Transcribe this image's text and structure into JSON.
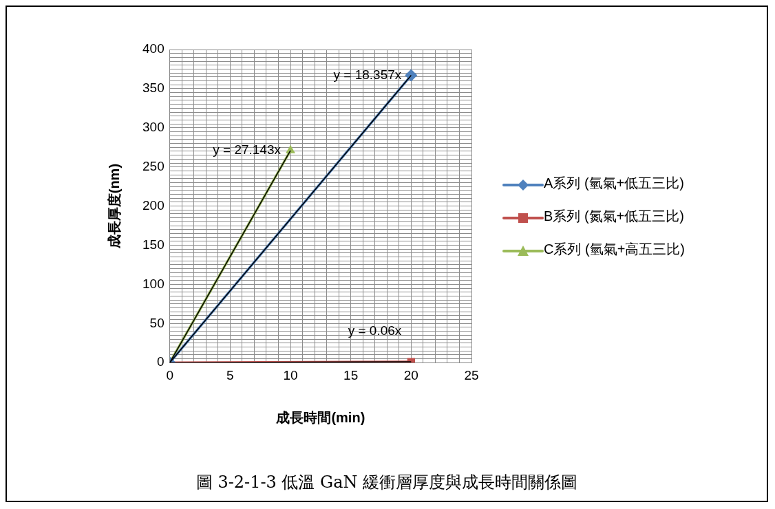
{
  "chart_data": {
    "type": "line",
    "xlabel": "成長時間(min)",
    "ylabel": "成長厚度(nm)",
    "xlim": [
      0,
      25
    ],
    "xticks": [
      0,
      {
        "value": 1,
        "label": null
      },
      {
        "value": 2,
        "label": null
      },
      {
        "value": 3,
        "label": null
      },
      {
        "value": 4,
        "label": null
      },
      5,
      {
        "value": 6,
        "label": null
      },
      {
        "value": 7,
        "label": null
      },
      {
        "value": 8,
        "label": null
      },
      {
        "value": 9,
        "label": null
      },
      10,
      {
        "value": 11,
        "label": null
      },
      {
        "value": 12,
        "label": null
      },
      {
        "value": 13,
        "label": null
      },
      {
        "value": 14,
        "label": null
      },
      15,
      {
        "value": 16,
        "label": null
      },
      {
        "value": 17,
        "label": null
      },
      {
        "value": 18,
        "label": null
      },
      {
        "value": 19,
        "label": null
      },
      20,
      {
        "value": 21,
        "label": null
      },
      {
        "value": 22,
        "label": null
      },
      {
        "value": 23,
        "label": null
      },
      {
        "value": 24,
        "label": null
      },
      25
    ],
    "ylim": [
      0,
      400
    ],
    "yticks": [
      0,
      {
        "value": 5,
        "label": null
      },
      {
        "value": 10,
        "label": null
      },
      {
        "value": 15,
        "label": null
      },
      {
        "value": 20,
        "label": null
      },
      {
        "value": 25,
        "label": null
      },
      {
        "value": 30,
        "label": null
      },
      {
        "value": 35,
        "label": null
      },
      {
        "value": 40,
        "label": null
      },
      {
        "value": 45,
        "label": null
      },
      50,
      {
        "value": 55,
        "label": null
      },
      {
        "value": 60,
        "label": null
      },
      {
        "value": 65,
        "label": null
      },
      {
        "value": 70,
        "label": null
      },
      {
        "value": 75,
        "label": null
      },
      {
        "value": 80,
        "label": null
      },
      {
        "value": 85,
        "label": null
      },
      {
        "value": 90,
        "label": null
      },
      {
        "value": 95,
        "label": null
      },
      100,
      {
        "value": 105,
        "label": null
      },
      {
        "value": 110,
        "label": null
      },
      {
        "value": 115,
        "label": null
      },
      {
        "value": 120,
        "label": null
      },
      {
        "value": 125,
        "label": null
      },
      {
        "value": 130,
        "label": null
      },
      {
        "value": 135,
        "label": null
      },
      {
        "value": 140,
        "label": null
      },
      {
        "value": 145,
        "label": null
      },
      150,
      {
        "value": 155,
        "label": null
      },
      {
        "value": 160,
        "label": null
      },
      {
        "value": 165,
        "label": null
      },
      {
        "value": 170,
        "label": null
      },
      {
        "value": 175,
        "label": null
      },
      {
        "value": 180,
        "label": null
      },
      {
        "value": 185,
        "label": null
      },
      {
        "value": 190,
        "label": null
      },
      {
        "value": 195,
        "label": null
      },
      200,
      {
        "value": 205,
        "label": null
      },
      {
        "value": 210,
        "label": null
      },
      {
        "value": 215,
        "label": null
      },
      {
        "value": 220,
        "label": null
      },
      {
        "value": 225,
        "label": null
      },
      {
        "value": 230,
        "label": null
      },
      {
        "value": 235,
        "label": null
      },
      {
        "value": 240,
        "label": null
      },
      {
        "value": 245,
        "label": null
      },
      250,
      {
        "value": 255,
        "label": null
      },
      {
        "value": 260,
        "label": null
      },
      {
        "value": 265,
        "label": null
      },
      {
        "value": 270,
        "label": null
      },
      {
        "value": 275,
        "label": null
      },
      {
        "value": 280,
        "label": null
      },
      {
        "value": 285,
        "label": null
      },
      {
        "value": 290,
        "label": null
      },
      {
        "value": 295,
        "label": null
      },
      300,
      {
        "value": 305,
        "label": null
      },
      {
        "value": 310,
        "label": null
      },
      {
        "value": 315,
        "label": null
      },
      {
        "value": 320,
        "label": null
      },
      {
        "value": 325,
        "label": null
      },
      {
        "value": 330,
        "label": null
      },
      {
        "value": 335,
        "label": null
      },
      {
        "value": 340,
        "label": null
      },
      {
        "value": 345,
        "label": null
      },
      350,
      {
        "value": 355,
        "label": null
      },
      {
        "value": 360,
        "label": null
      },
      {
        "value": 365,
        "label": null
      },
      {
        "value": 370,
        "label": null
      },
      {
        "value": 375,
        "label": null
      },
      {
        "value": 380,
        "label": null
      },
      {
        "value": 385,
        "label": null
      },
      {
        "value": 390,
        "label": null
      },
      {
        "value": 395,
        "label": null
      },
      400
    ],
    "grid": true,
    "legend": "right",
    "series": [
      {
        "name": "A系列 (氫氣+低五三比)",
        "color": "#4f81bd",
        "marker": "diamond",
        "x": [
          0,
          20
        ],
        "values": [
          0,
          367
        ]
      },
      {
        "name": "B系列 (氮氣+低五三比)",
        "color": "#c0504d",
        "marker": "square",
        "x": [
          0,
          20
        ],
        "values": [
          0,
          1
        ]
      },
      {
        "name": "C系列 (氫氣+高五三比)",
        "color": "#9bbb59",
        "marker": "triangle",
        "x": [
          0,
          10
        ],
        "values": [
          0,
          271
        ]
      },
      {
        "type": "line",
        "color": "#000000",
        "marker": "none",
        "x": [
          0,
          20
        ],
        "values": [
          0,
          367
        ]
      },
      {
        "type": "line",
        "color": "#000000",
        "marker": "none",
        "x": [
          0,
          20
        ],
        "values": [
          0,
          1
        ]
      },
      {
        "type": "line",
        "color": "#000000",
        "marker": "none",
        "x": [
          0,
          10
        ],
        "values": [
          0,
          271
        ]
      }
    ],
    "annotations": [
      "y = 18.357x",
      "y = 0.06x",
      "y = 27.143x",
      "圖 3-2-1-3 低溫 GaN 緩衝層厚度與成長時間關係圖"
    ]
  }
}
